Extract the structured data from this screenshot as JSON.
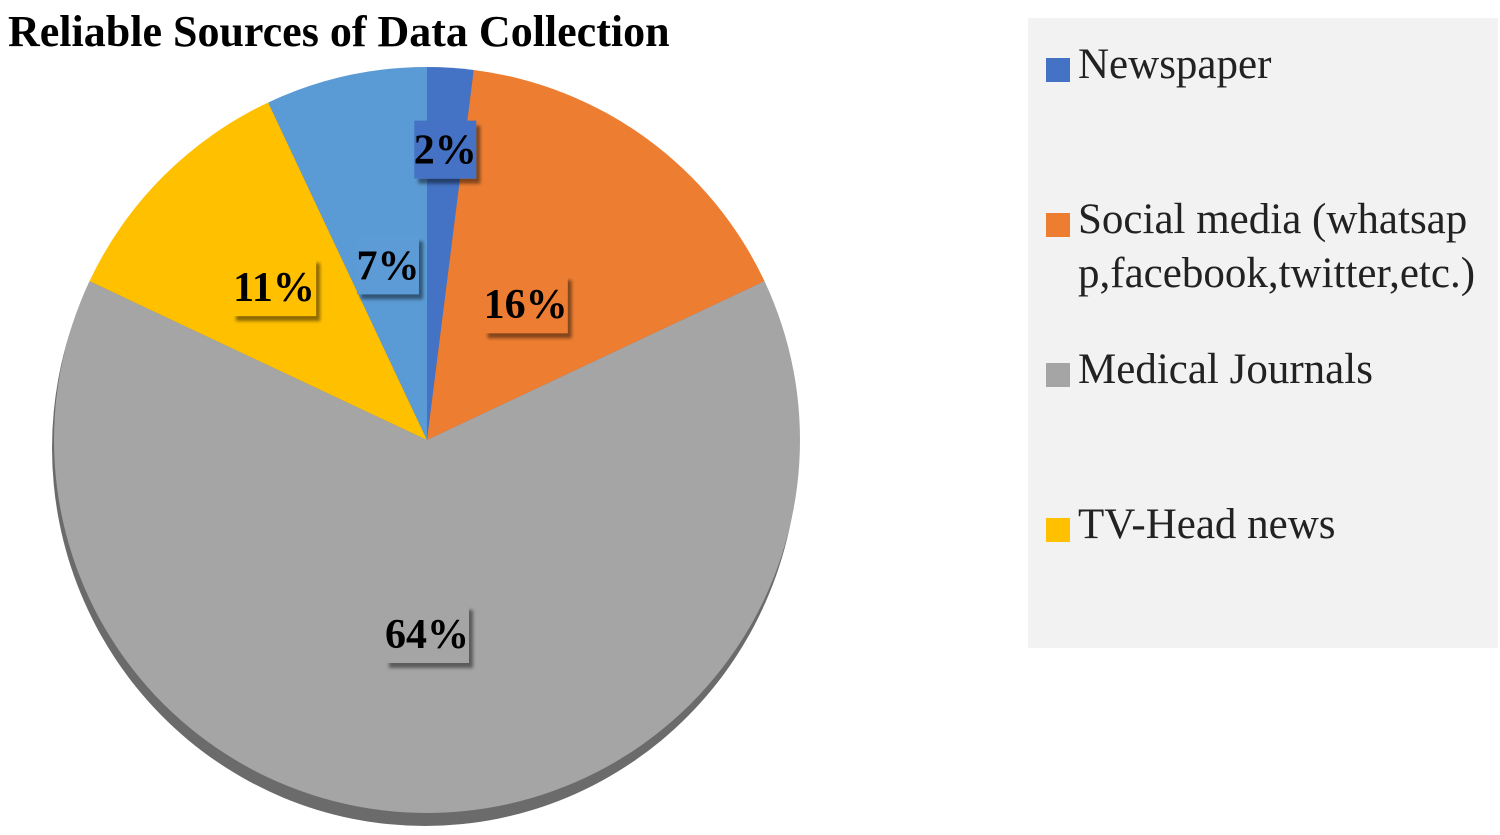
{
  "chart_data": {
    "type": "pie",
    "title": "Reliable Sources of Data Collection",
    "slices": [
      {
        "name": "Newspaper",
        "value": 2,
        "label": "2%",
        "color": "#4472C4"
      },
      {
        "name": "Social media (whatsapp,facebook,twitter,etc.)",
        "value": 16,
        "label": "16%",
        "color": "#ED7D31"
      },
      {
        "name": "Medical Journals",
        "value": 64,
        "label": "64%",
        "color": "#A5A5A5"
      },
      {
        "name": "TV-Head news",
        "value": 11,
        "label": "11%",
        "color": "#FFC000"
      },
      {
        "value": 7,
        "label": "7%",
        "color": "#5B9BD5"
      }
    ],
    "legend_position": "right"
  },
  "legend": {
    "items": [
      {
        "label": "Newspaper",
        "color": "#4472C4"
      },
      {
        "label": "Social media (whatsapp,facebook,twitter,etc.)",
        "color": "#ED7D31"
      },
      {
        "label": "Medical Journals",
        "color": "#A5A5A5"
      },
      {
        "label": "TV-Head news",
        "color": "#FFC000"
      }
    ]
  }
}
